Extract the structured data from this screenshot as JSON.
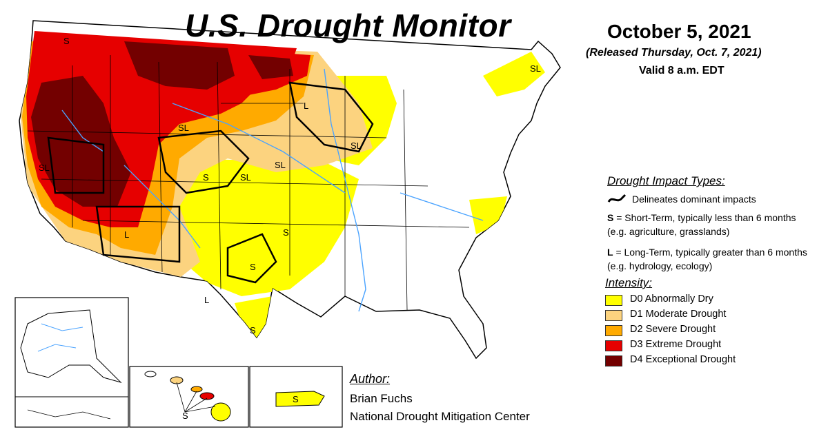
{
  "header": {
    "title": "U.S. Drought Monitor",
    "date": "October 5, 2021",
    "released": "(Released Thursday, Oct. 7, 2021)",
    "valid": "Valid 8 a.m. EDT"
  },
  "impact_types": {
    "heading": "Drought Impact Types:",
    "delineates": "Delineates dominant impacts",
    "short_term": {
      "code": "S",
      "text": " = Short-Term, typically less than 6 months (e.g. agriculture, grasslands)"
    },
    "long_term": {
      "code": "L",
      "text": " = Long-Term, typically greater than 6 months (e.g. hydrology, ecology)"
    }
  },
  "intensity": {
    "heading": "Intensity:",
    "levels": [
      {
        "label": "D0 Abnormally Dry",
        "color": "#ffff00"
      },
      {
        "label": "D1 Moderate Drought",
        "color": "#fcd37f"
      },
      {
        "label": "D2 Severe Drought",
        "color": "#ffaa00"
      },
      {
        "label": "D3 Extreme Drought",
        "color": "#e60000"
      },
      {
        "label": "D4 Exceptional Drought",
        "color": "#730000"
      }
    ]
  },
  "author": {
    "heading": "Author:",
    "name": "Brian Fuchs",
    "org": "National Drought Mitigation Center"
  },
  "map_labels": {
    "s": "S",
    "l": "L",
    "sl": "SL"
  },
  "colors": {
    "water": "#4aa3ff",
    "boundary": "#000000"
  }
}
